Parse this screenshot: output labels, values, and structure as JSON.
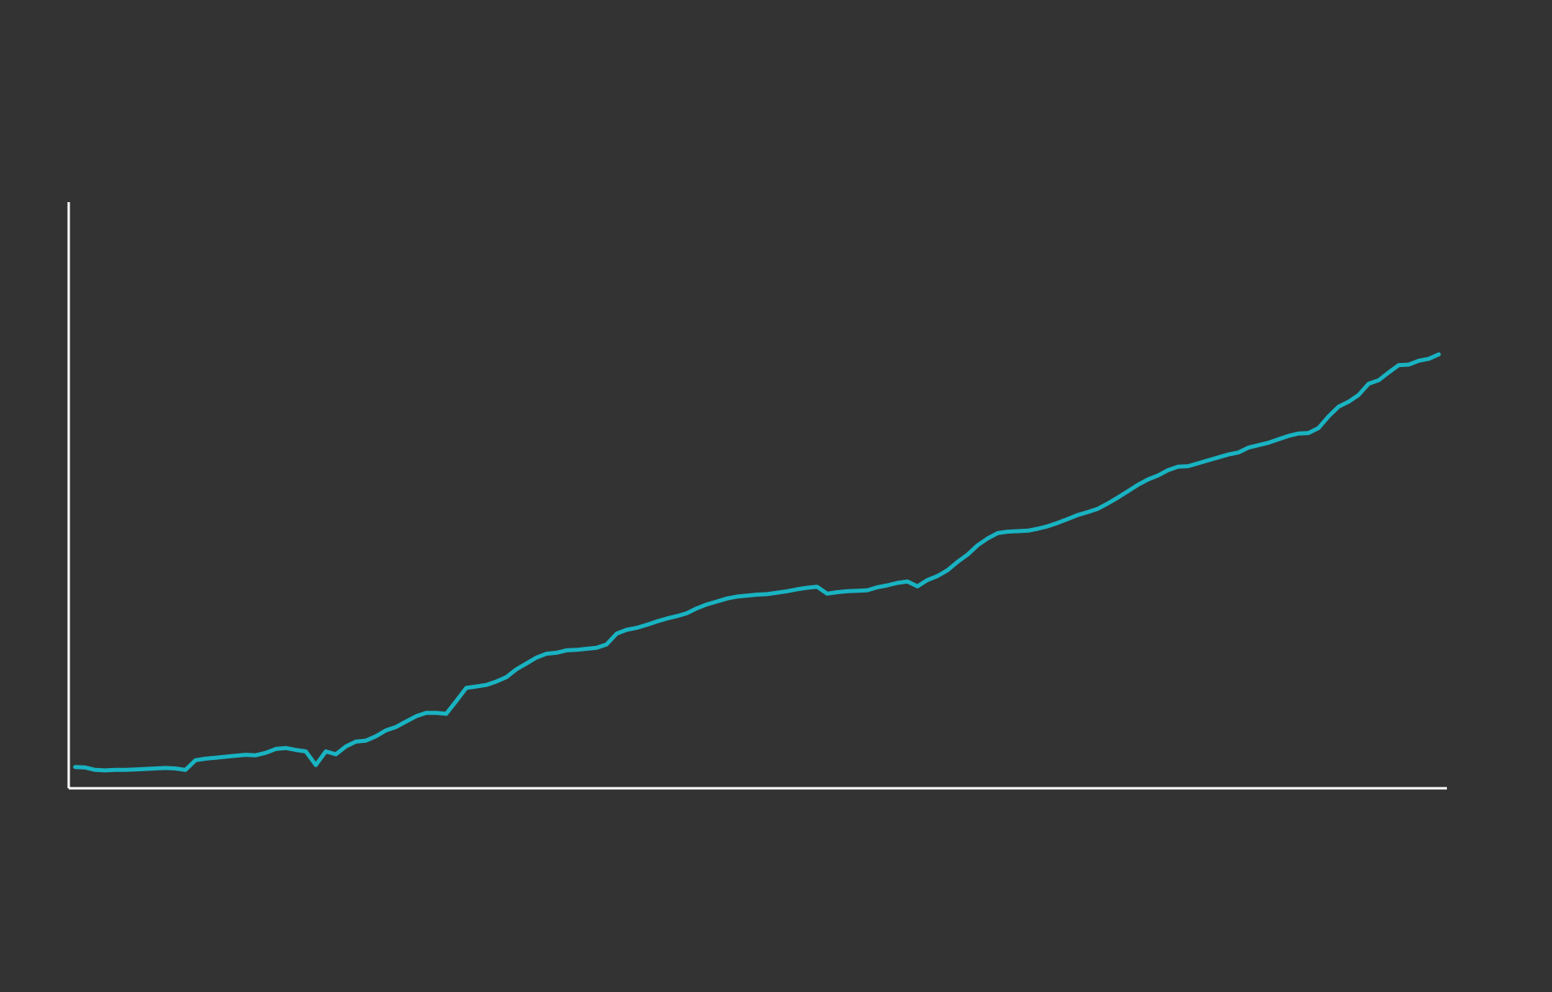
{
  "colors": {
    "background": "#333333",
    "axis": "#ffffff",
    "line": "#19b3c2"
  },
  "chart_data": {
    "type": "line",
    "title": "",
    "xlabel": "",
    "ylabel": "",
    "grid": false,
    "legend": "none",
    "xlim": [
      0,
      169
    ],
    "ylim": [
      0,
      100
    ],
    "series": [
      {
        "values": [
          2.2,
          2.1,
          1.6,
          1.5,
          1.6,
          1.6,
          1.7,
          1.8,
          1.9,
          2.0,
          1.9,
          1.6,
          3.6,
          3.9,
          4.1,
          4.3,
          4.5,
          4.7,
          4.6,
          5.1,
          5.9,
          6.1,
          5.7,
          5.4,
          2.6,
          5.4,
          4.8,
          6.4,
          7.4,
          7.6,
          8.5,
          9.7,
          10.4,
          11.5,
          12.6,
          13.3,
          13.3,
          13.1,
          15.7,
          18.4,
          18.7,
          19.0,
          19.7,
          20.6,
          22.2,
          23.4,
          24.6,
          25.4,
          25.6,
          26.1,
          26.2,
          26.4,
          26.6,
          27.3,
          29.5,
          30.3,
          30.7,
          31.3,
          32.0,
          32.6,
          33.1,
          33.7,
          34.7,
          35.5,
          36.1,
          36.7,
          37.1,
          37.3,
          37.5,
          37.6,
          37.9,
          38.2,
          38.6,
          38.9,
          39.1,
          37.7,
          38.0,
          38.2,
          38.3,
          38.4,
          39.0,
          39.4,
          39.9,
          40.2,
          39.2,
          40.5,
          41.3,
          42.5,
          44.2,
          45.7,
          47.6,
          49.0,
          50.1,
          50.4,
          50.5,
          50.6,
          51.0,
          51.5,
          52.2,
          53.0,
          53.8,
          54.4,
          55.1,
          56.2,
          57.4,
          58.7,
          60.0,
          61.1,
          61.9,
          63.0,
          63.7,
          63.8,
          64.4,
          65.0,
          65.6,
          66.2,
          66.6,
          67.6,
          68.1,
          68.6,
          69.3,
          70.0,
          70.5,
          70.6,
          71.6,
          74.0,
          76.0,
          77.0,
          78.4,
          80.7,
          81.4,
          83.0,
          84.5,
          84.6,
          85.4,
          85.8,
          86.7
        ]
      }
    ]
  }
}
